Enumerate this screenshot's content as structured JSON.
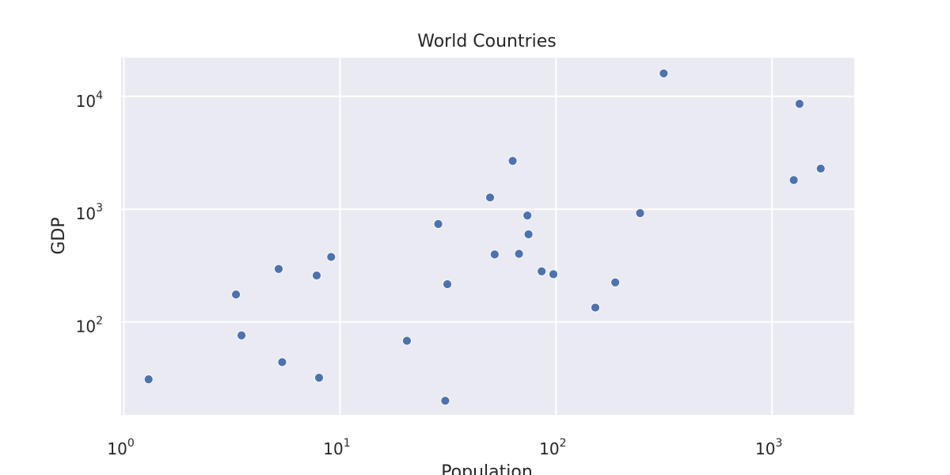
{
  "chart_data": {
    "type": "scatter",
    "title": "World Countries",
    "xlabel": "Population",
    "ylabel": "GDP",
    "xscale": "log",
    "yscale": "log",
    "xlim": [
      0.97,
      2400
    ],
    "ylim": [
      15,
      22000
    ],
    "x_ticks": [
      {
        "base": "10",
        "exp": "0",
        "value": 1
      },
      {
        "base": "10",
        "exp": "1",
        "value": 10
      },
      {
        "base": "10",
        "exp": "2",
        "value": 100
      },
      {
        "base": "10",
        "exp": "3",
        "value": 1000
      }
    ],
    "y_ticks": [
      {
        "base": "10",
        "exp": "2",
        "value": 100
      },
      {
        "base": "10",
        "exp": "3",
        "value": 1000
      },
      {
        "base": "10",
        "exp": "4",
        "value": 10000
      }
    ],
    "grid": true,
    "background_color": "#eaeaf2",
    "grid_color": "#ffffff",
    "marker_color": "#4c72b0",
    "series": [
      {
        "points": [
          {
            "x": 1.3,
            "y": 31
          },
          {
            "x": 3.3,
            "y": 175
          },
          {
            "x": 3.5,
            "y": 76
          },
          {
            "x": 5.2,
            "y": 295
          },
          {
            "x": 5.4,
            "y": 44
          },
          {
            "x": 7.8,
            "y": 258
          },
          {
            "x": 8.0,
            "y": 32
          },
          {
            "x": 9.1,
            "y": 377
          },
          {
            "x": 20.4,
            "y": 68
          },
          {
            "x": 28.5,
            "y": 738
          },
          {
            "x": 30.7,
            "y": 20
          },
          {
            "x": 31.4,
            "y": 216
          },
          {
            "x": 49.5,
            "y": 1270
          },
          {
            "x": 52.0,
            "y": 397
          },
          {
            "x": 63.0,
            "y": 2680
          },
          {
            "x": 67.4,
            "y": 402
          },
          {
            "x": 73.7,
            "y": 878
          },
          {
            "x": 74.6,
            "y": 598
          },
          {
            "x": 85.8,
            "y": 281
          },
          {
            "x": 97.2,
            "y": 265
          },
          {
            "x": 152.0,
            "y": 134
          },
          {
            "x": 188.0,
            "y": 224
          },
          {
            "x": 245.0,
            "y": 922
          },
          {
            "x": 315.0,
            "y": 16000
          },
          {
            "x": 1260.0,
            "y": 1810
          },
          {
            "x": 1340.0,
            "y": 8600
          },
          {
            "x": 1680.0,
            "y": 2290
          }
        ]
      }
    ]
  }
}
